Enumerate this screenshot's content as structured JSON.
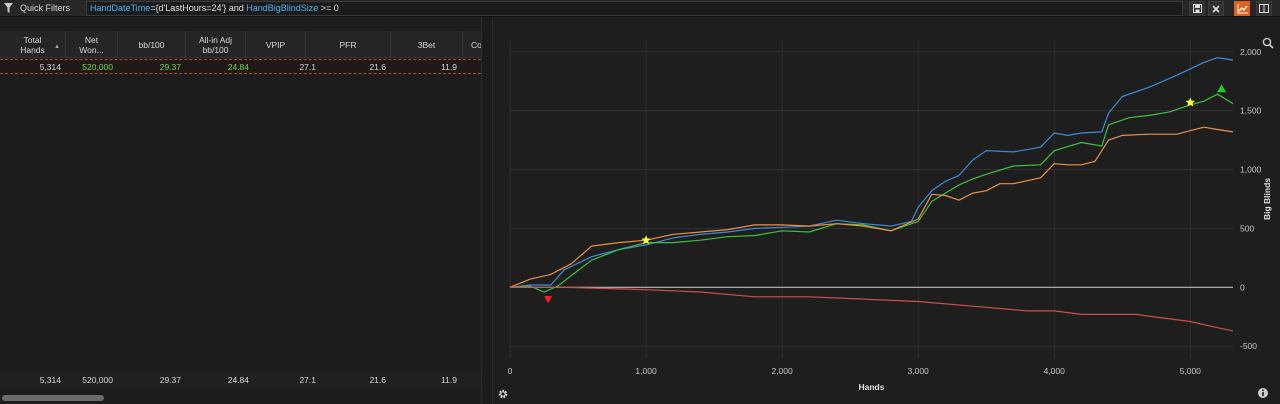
{
  "filter_bar": {
    "label": "Quick Filters",
    "query_parts": [
      {
        "text": "HandDateTime",
        "kind": "kw"
      },
      {
        "text": "={d'LastHours=24'} and ",
        "kind": "plain"
      },
      {
        "text": "HandBigBlindSize",
        "kind": "kw"
      },
      {
        "text": " >= 0",
        "kind": "plain"
      }
    ],
    "buttons": [
      "save-icon",
      "clear-icon",
      "chart-view-icon",
      "split-view-icon"
    ]
  },
  "table": {
    "columns": [
      {
        "label": "Total Hands",
        "sorted": true
      },
      {
        "label": "Net Won..."
      },
      {
        "label": "bb/100"
      },
      {
        "label": "All-in Adj bb/100"
      },
      {
        "label": "VPIP"
      },
      {
        "label": "PFR"
      },
      {
        "label": "3Bet"
      },
      {
        "label": "Co"
      }
    ],
    "selected_row": [
      "5,314",
      "520,000",
      "29.37",
      "24.84",
      "27.1",
      "21.6",
      "11.9"
    ],
    "summary_row": [
      "5,314",
      "520,000",
      "29.37",
      "24.84",
      "27.1",
      "21.6",
      "11.9"
    ]
  },
  "colors": {
    "accent": "#e0621f",
    "blue_line": "#3f8bd6",
    "green_line": "#3fbf3f",
    "orange_line": "#e8914a",
    "red_line": "#c9504f",
    "zero_line": "#bbbbbb",
    "star": "#ffff33"
  },
  "chart_data": {
    "type": "line",
    "xlabel": "Hands",
    "ylabel": "Big Blinds",
    "xlim": [
      0,
      5314
    ],
    "ylim": [
      -600,
      2100
    ],
    "x_ticks": [
      0,
      1000,
      2000,
      3000,
      4000,
      5000
    ],
    "x_tick_labels": [
      "0",
      "1,000",
      "2,000",
      "3,000",
      "4,000",
      "5,000"
    ],
    "y_ticks": [
      2000,
      1500,
      1000,
      500,
      0,
      -500
    ],
    "y_tick_labels": [
      "2,000",
      "1,500",
      "1,000",
      "500",
      "0",
      "-500"
    ],
    "grid": true,
    "series": [
      {
        "name": "blue",
        "color": "#3f8bd6",
        "points": [
          [
            0,
            0
          ],
          [
            150,
            20
          ],
          [
            300,
            20
          ],
          [
            400,
            150
          ],
          [
            600,
            260
          ],
          [
            800,
            320
          ],
          [
            1000,
            360
          ],
          [
            1200,
            420
          ],
          [
            1400,
            450
          ],
          [
            1600,
            470
          ],
          [
            1800,
            500
          ],
          [
            2000,
            510
          ],
          [
            2200,
            520
          ],
          [
            2400,
            570
          ],
          [
            2600,
            540
          ],
          [
            2800,
            520
          ],
          [
            2950,
            560
          ],
          [
            3000,
            680
          ],
          [
            3100,
            820
          ],
          [
            3200,
            900
          ],
          [
            3300,
            950
          ],
          [
            3400,
            1080
          ],
          [
            3500,
            1160
          ],
          [
            3700,
            1150
          ],
          [
            3900,
            1190
          ],
          [
            4000,
            1310
          ],
          [
            4100,
            1290
          ],
          [
            4200,
            1310
          ],
          [
            4350,
            1320
          ],
          [
            4400,
            1480
          ],
          [
            4500,
            1620
          ],
          [
            4700,
            1700
          ],
          [
            4900,
            1800
          ],
          [
            5100,
            1910
          ],
          [
            5200,
            1950
          ],
          [
            5314,
            1930
          ]
        ]
      },
      {
        "name": "green",
        "color": "#3fbf3f",
        "points": [
          [
            0,
            0
          ],
          [
            150,
            10
          ],
          [
            250,
            -40
          ],
          [
            350,
            10
          ],
          [
            450,
            100
          ],
          [
            600,
            230
          ],
          [
            800,
            320
          ],
          [
            1000,
            380
          ],
          [
            1200,
            380
          ],
          [
            1400,
            400
          ],
          [
            1600,
            430
          ],
          [
            1800,
            440
          ],
          [
            2000,
            480
          ],
          [
            2200,
            470
          ],
          [
            2400,
            540
          ],
          [
            2600,
            530
          ],
          [
            2800,
            480
          ],
          [
            3000,
            560
          ],
          [
            3100,
            730
          ],
          [
            3300,
            870
          ],
          [
            3400,
            920
          ],
          [
            3500,
            960
          ],
          [
            3700,
            1030
          ],
          [
            3900,
            1040
          ],
          [
            4000,
            1160
          ],
          [
            4200,
            1230
          ],
          [
            4350,
            1200
          ],
          [
            4400,
            1380
          ],
          [
            4550,
            1440
          ],
          [
            4700,
            1460
          ],
          [
            4850,
            1490
          ],
          [
            5000,
            1550
          ],
          [
            5100,
            1580
          ],
          [
            5200,
            1640
          ],
          [
            5314,
            1560
          ]
        ]
      },
      {
        "name": "orange",
        "color": "#e8914a",
        "points": [
          [
            0,
            0
          ],
          [
            150,
            70
          ],
          [
            300,
            110
          ],
          [
            450,
            200
          ],
          [
            600,
            350
          ],
          [
            800,
            380
          ],
          [
            1000,
            400
          ],
          [
            1200,
            450
          ],
          [
            1400,
            470
          ],
          [
            1600,
            490
          ],
          [
            1800,
            530
          ],
          [
            2000,
            530
          ],
          [
            2200,
            520
          ],
          [
            2400,
            540
          ],
          [
            2600,
            520
          ],
          [
            2800,
            480
          ],
          [
            3000,
            580
          ],
          [
            3100,
            790
          ],
          [
            3200,
            780
          ],
          [
            3300,
            740
          ],
          [
            3400,
            800
          ],
          [
            3500,
            820
          ],
          [
            3600,
            880
          ],
          [
            3700,
            880
          ],
          [
            3900,
            930
          ],
          [
            4000,
            1050
          ],
          [
            4100,
            1040
          ],
          [
            4200,
            1040
          ],
          [
            4300,
            1070
          ],
          [
            4400,
            1250
          ],
          [
            4500,
            1290
          ],
          [
            4700,
            1300
          ],
          [
            4900,
            1300
          ],
          [
            5100,
            1360
          ],
          [
            5200,
            1340
          ],
          [
            5314,
            1320
          ]
        ]
      },
      {
        "name": "red",
        "color": "#c9504f",
        "points": [
          [
            0,
            0
          ],
          [
            200,
            0
          ],
          [
            400,
            0
          ],
          [
            700,
            -10
          ],
          [
            1000,
            -20
          ],
          [
            1400,
            -40
          ],
          [
            1800,
            -80
          ],
          [
            2200,
            -80
          ],
          [
            2600,
            -100
          ],
          [
            3000,
            -120
          ],
          [
            3400,
            -160
          ],
          [
            3800,
            -200
          ],
          [
            4000,
            -200
          ],
          [
            4200,
            -230
          ],
          [
            4400,
            -230
          ],
          [
            4600,
            -230
          ],
          [
            4800,
            -260
          ],
          [
            5000,
            -290
          ],
          [
            5150,
            -330
          ],
          [
            5314,
            -370
          ]
        ]
      }
    ],
    "markers": [
      {
        "type": "star",
        "x": 1000,
        "y": 400,
        "color": "#ffff33"
      },
      {
        "type": "star",
        "x": 5000,
        "y": 1570,
        "color": "#ffff33"
      },
      {
        "type": "triangle-down",
        "x": 280,
        "y": -100,
        "color": "#ff2020"
      },
      {
        "type": "triangle-up",
        "x": 5230,
        "y": 1690,
        "color": "#22cc22"
      }
    ]
  }
}
